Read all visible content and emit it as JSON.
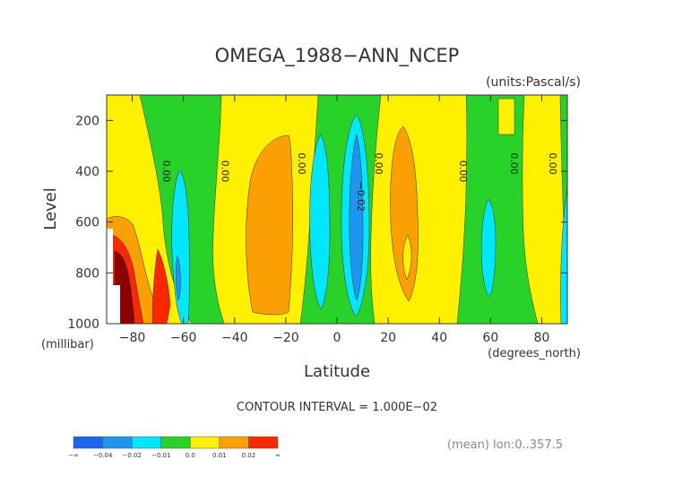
{
  "chart_data": {
    "type": "contour",
    "title": "OMEGA_1988−ANN_NCEP",
    "units_label": "(units:Pascal/s)",
    "xlabel": "Latitude",
    "x_units_label": "(degrees_north)",
    "ylabel": "Level",
    "y_units_label": "(millibar)",
    "xlim": [
      -90,
      90
    ],
    "ylim": [
      1000,
      100
    ],
    "x_ticks": [
      -80,
      -60,
      -40,
      -20,
      0,
      20,
      40,
      60,
      80
    ],
    "x_tick_labels": [
      "−80",
      "−60",
      "−40",
      "−20",
      "0",
      "20",
      "40",
      "60",
      "80"
    ],
    "y_ticks": [
      200,
      400,
      600,
      800,
      1000
    ],
    "y_tick_labels": [
      "200",
      "400",
      "600",
      "800",
      "1000"
    ],
    "contour_interval_text": "CONTOUR INTERVAL = 1.000E−02",
    "mean_note": "(mean) lon:0..357.5",
    "contour_labels": [
      {
        "lat": -68,
        "lev": 400,
        "text": "0.00"
      },
      {
        "lat": -45,
        "lev": 400,
        "text": "0.00"
      },
      {
        "lat": -15,
        "lev": 370,
        "text": "0.00"
      },
      {
        "lat": 8,
        "lev": 500,
        "text": "−0.02"
      },
      {
        "lat": 15,
        "lev": 370,
        "text": "0.00"
      },
      {
        "lat": 48,
        "lev": 400,
        "text": "0.00"
      },
      {
        "lat": 68,
        "lev": 370,
        "text": "0.00"
      },
      {
        "lat": 83,
        "lev": 370,
        "text": "0.00"
      }
    ],
    "colorbar": {
      "boundary_labels": [
        "−∞",
        "−0.04",
        "−0.02",
        "−0.01",
        "0.0",
        "0.01",
        "0.02",
        "∞"
      ],
      "colors": [
        "#1e64f0",
        "#1e96f0",
        "#00e6ff",
        "#28d228",
        "#fff000",
        "#faa000",
        "#fa2800"
      ]
    },
    "level_colors": {
      "dark_blue": "#1e64f0",
      "blue": "#1e96f0",
      "cyan": "#00e6ff",
      "green": "#28d228",
      "yellow": "#fff000",
      "orange": "#faa000",
      "red": "#fa2800",
      "dark_red": "#8b0000"
    },
    "grid": false,
    "legend": "colorbar-bottom-left"
  }
}
